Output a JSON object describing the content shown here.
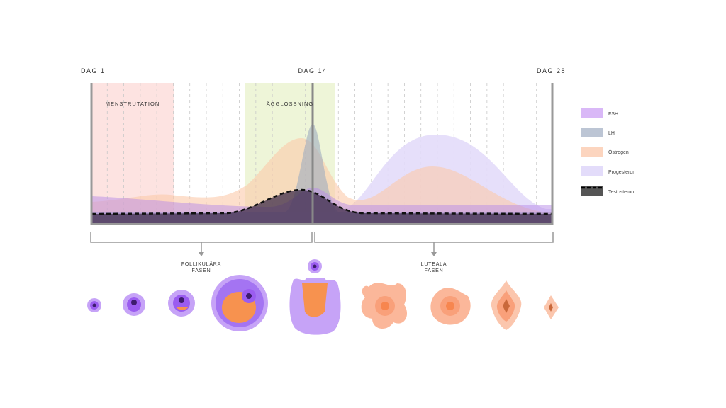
{
  "days": [
    "DAG 1",
    "DAG 14",
    "DAG 28"
  ],
  "bands": {
    "menstruation": "MENSTRUTATION",
    "ovulation": "ÄGGLOSSNING"
  },
  "legend": [
    "FSH",
    "LH",
    "Östrogen",
    "Progesteron",
    "Testosteron"
  ],
  "phases": {
    "follicular": [
      "FOLLIKULÄRA",
      "FASEN"
    ],
    "luteal": [
      "LUTEALA",
      "FASEN"
    ]
  }
}
